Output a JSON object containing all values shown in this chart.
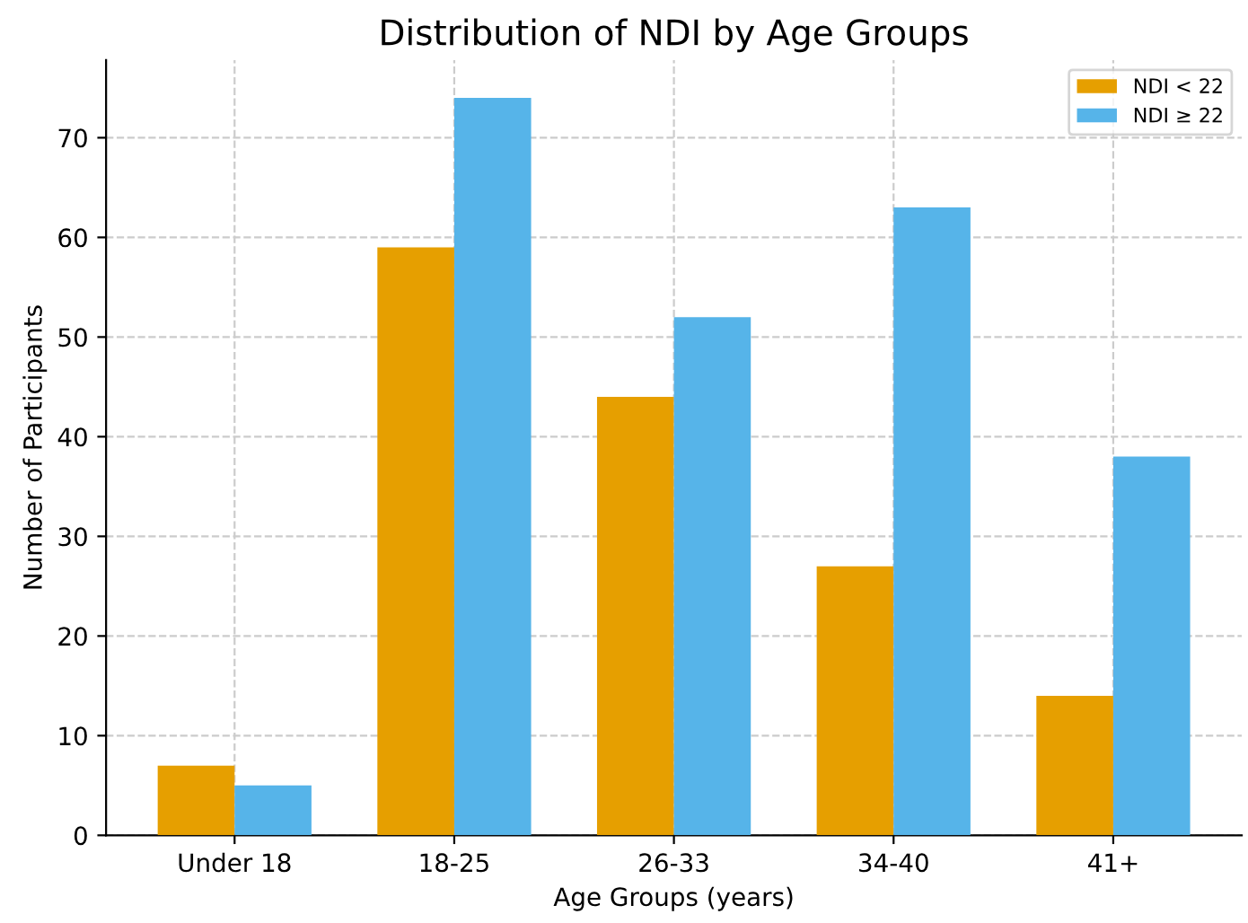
{
  "chart_data": {
    "type": "bar",
    "title": "Distribution of NDI by Age Groups",
    "xlabel": "Age Groups (years)",
    "ylabel": "Number of Participants",
    "categories": [
      "Under 18",
      "18-25",
      "26-33",
      "34-40",
      "41+"
    ],
    "series": [
      {
        "name": "NDI < 22",
        "color": "#e69f00",
        "values": [
          7,
          59,
          44,
          27,
          14
        ]
      },
      {
        "name": "NDI ≥ 22",
        "color": "#56b4e9",
        "values": [
          5,
          74,
          52,
          63,
          38
        ]
      }
    ],
    "ylim": [
      0,
      77.8
    ],
    "yticks": [
      0,
      10,
      20,
      30,
      40,
      50,
      60,
      70
    ],
    "grid": true,
    "legend": "top right"
  }
}
